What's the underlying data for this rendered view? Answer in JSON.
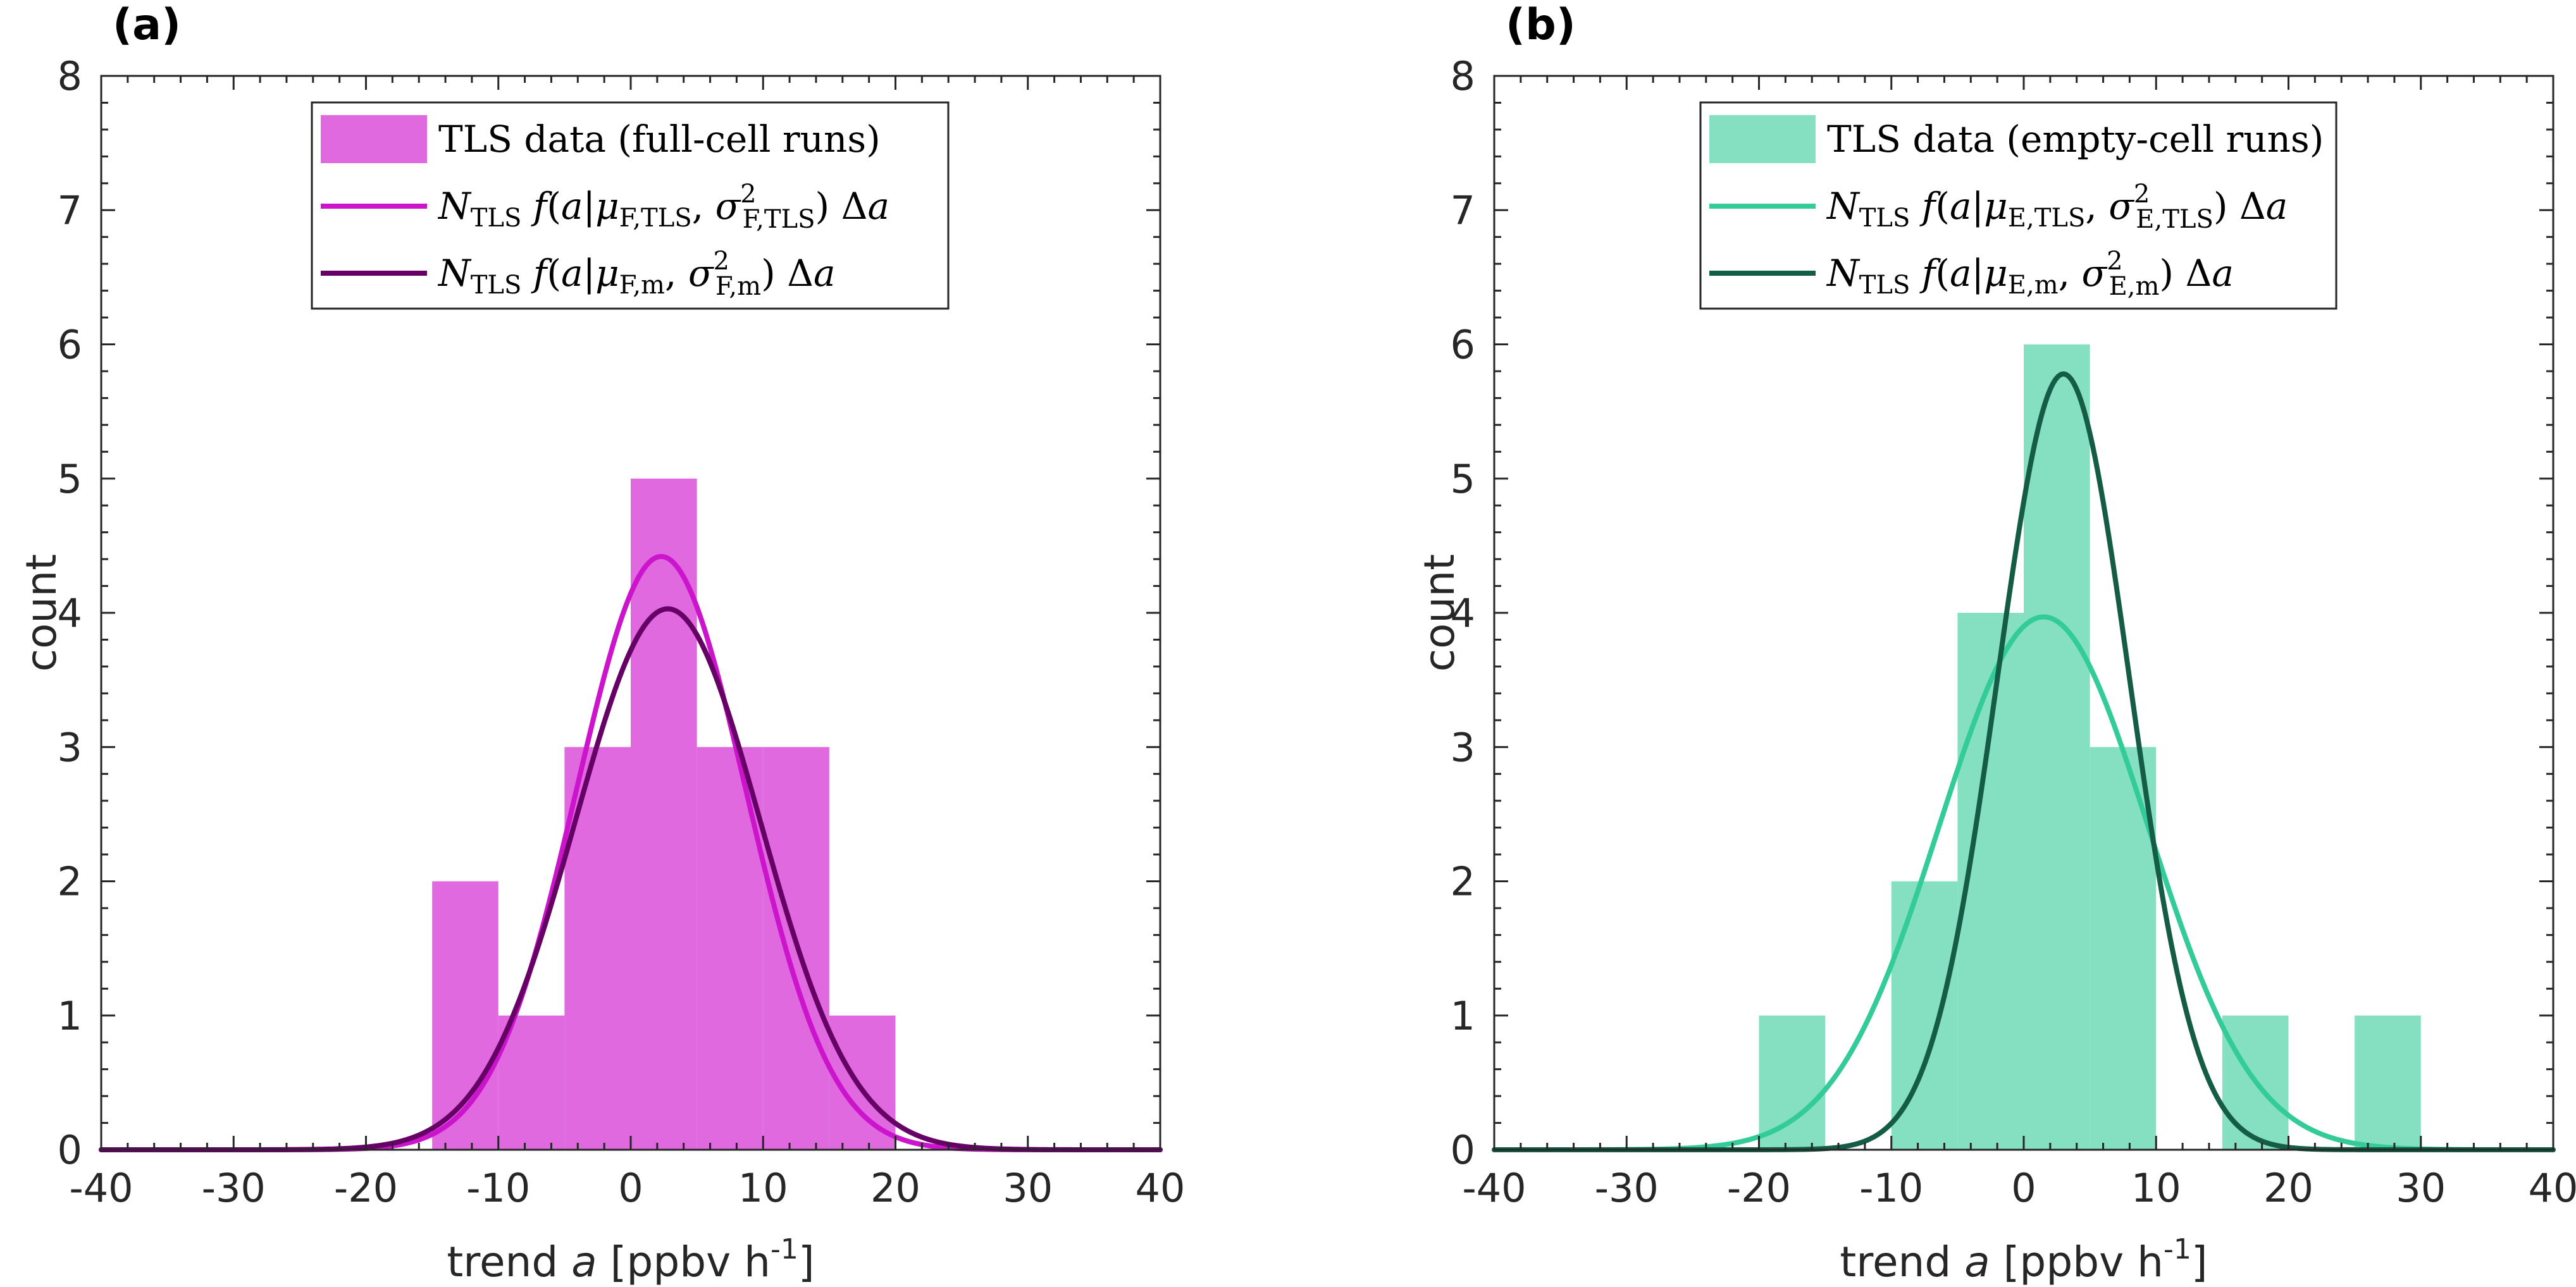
{
  "chart_data": [
    {
      "type": "bar",
      "panel_label": "(a)",
      "xlabel": "trend a [ppbv h-1]",
      "ylabel": "count",
      "xlim": [
        -40,
        40
      ],
      "ylim": [
        0,
        8
      ],
      "xticks": [
        -40,
        -30,
        -20,
        -10,
        0,
        10,
        20,
        30,
        40
      ],
      "yticks": [
        0,
        1,
        2,
        3,
        4,
        5,
        6,
        7,
        8
      ],
      "bin_width": 5,
      "bins": [
        {
          "x0": -15,
          "x1": -10,
          "count": 2
        },
        {
          "x0": -10,
          "x1": -5,
          "count": 1
        },
        {
          "x0": -5,
          "x1": 0,
          "count": 3
        },
        {
          "x0": 0,
          "x1": 5,
          "count": 5
        },
        {
          "x0": 5,
          "x1": 10,
          "count": 3
        },
        {
          "x0": 10,
          "x1": 15,
          "count": 3
        },
        {
          "x0": 15,
          "x1": 20,
          "count": 1
        }
      ],
      "bar_color": "#e069e0",
      "curves": [
        {
          "mu": 2.3,
          "peak": 4.42,
          "sigma": 6.4,
          "color": "#cc14cc"
        },
        {
          "mu": 2.8,
          "peak": 4.03,
          "sigma": 7.0,
          "color": "#660066"
        }
      ],
      "legend": {
        "position": "top",
        "entries": [
          {
            "kind": "bar",
            "color": "#e069e0",
            "text": "TLS data (full-cell runs)"
          },
          {
            "kind": "line",
            "color": "#cc14cc",
            "text": "NTLS f(a|μF,TLS, σ2F,TLS) Δa"
          },
          {
            "kind": "line",
            "color": "#660066",
            "text": "NTLS f(a|μF,m, σ2F,m) Δa"
          }
        ]
      }
    },
    {
      "type": "bar",
      "panel_label": "(b)",
      "xlabel": "trend a [ppbv h-1]",
      "ylabel": "count",
      "xlim": [
        -40,
        40
      ],
      "ylim": [
        0,
        8
      ],
      "xticks": [
        -40,
        -30,
        -20,
        -10,
        0,
        10,
        20,
        30,
        40
      ],
      "yticks": [
        0,
        1,
        2,
        3,
        4,
        5,
        6,
        7,
        8
      ],
      "bin_width": 5,
      "bins": [
        {
          "x0": -20,
          "x1": -15,
          "count": 1
        },
        {
          "x0": -10,
          "x1": -5,
          "count": 2
        },
        {
          "x0": -5,
          "x1": 0,
          "count": 4
        },
        {
          "x0": 0,
          "x1": 5,
          "count": 6
        },
        {
          "x0": 5,
          "x1": 10,
          "count": 3
        },
        {
          "x0": 15,
          "x1": 20,
          "count": 1
        },
        {
          "x0": 25,
          "x1": 30,
          "count": 1
        }
      ],
      "bar_color": "#85e0c2",
      "curves": [
        {
          "mu": 1.5,
          "peak": 3.97,
          "sigma": 7.9,
          "color": "#33cc99"
        },
        {
          "mu": 3.0,
          "peak": 5.78,
          "sigma": 5.0,
          "color": "#145c45"
        }
      ],
      "legend": {
        "position": "top",
        "entries": [
          {
            "kind": "bar",
            "color": "#85e0c2",
            "text": "TLS data (empty-cell runs)"
          },
          {
            "kind": "line",
            "color": "#33cc99",
            "text": "NTLS f(a|μE,TLS, σ2E,TLS) Δa"
          },
          {
            "kind": "line",
            "color": "#145c45",
            "text": "NTLS f(a|μE,m, σ2E,m) Δa"
          }
        ]
      }
    }
  ]
}
